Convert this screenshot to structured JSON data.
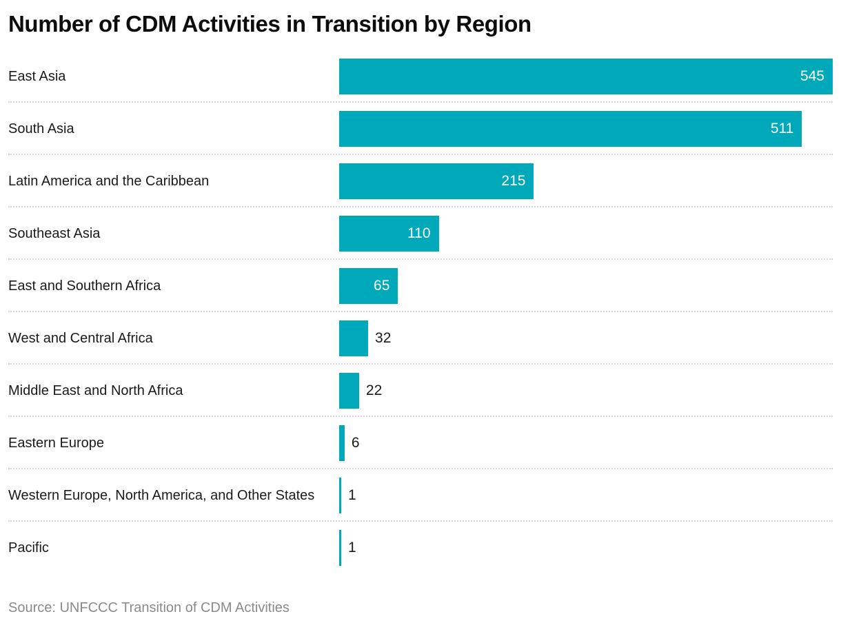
{
  "title": "Number of CDM Activities in Transition by Region",
  "source": "Source: UNFCCC Transition of CDM Activities",
  "colors": {
    "bar": "#00a9ba",
    "title_text": "#0d0d0d",
    "category_label": "#1a1a1a",
    "value_label_inside": "#ffffff",
    "value_label_outside": "#1a1a1a",
    "separator": "#d4d4d4",
    "source_text": "#8a8a8a",
    "background": "#ffffff"
  },
  "chart_data": {
    "type": "bar",
    "orientation": "horizontal",
    "title": "Number of CDM Activities in Transition by Region",
    "categories": [
      "East Asia",
      "South Asia",
      "Latin America and the Caribbean",
      "Southeast Asia",
      "East and Southern Africa",
      "West and Central Africa",
      "Middle East and North Africa",
      "Eastern Europe",
      "Western Europe, North America, and Other States",
      "Pacific"
    ],
    "values": [
      545,
      511,
      215,
      110,
      65,
      32,
      22,
      6,
      1,
      1
    ],
    "xlabel": "",
    "ylabel": "",
    "xlim": [
      0,
      545
    ],
    "grid": false,
    "legend": false,
    "value_labels": "at-bar-end",
    "row_separators": "dotted",
    "source": "Source: UNFCCC Transition of CDM Activities"
  }
}
